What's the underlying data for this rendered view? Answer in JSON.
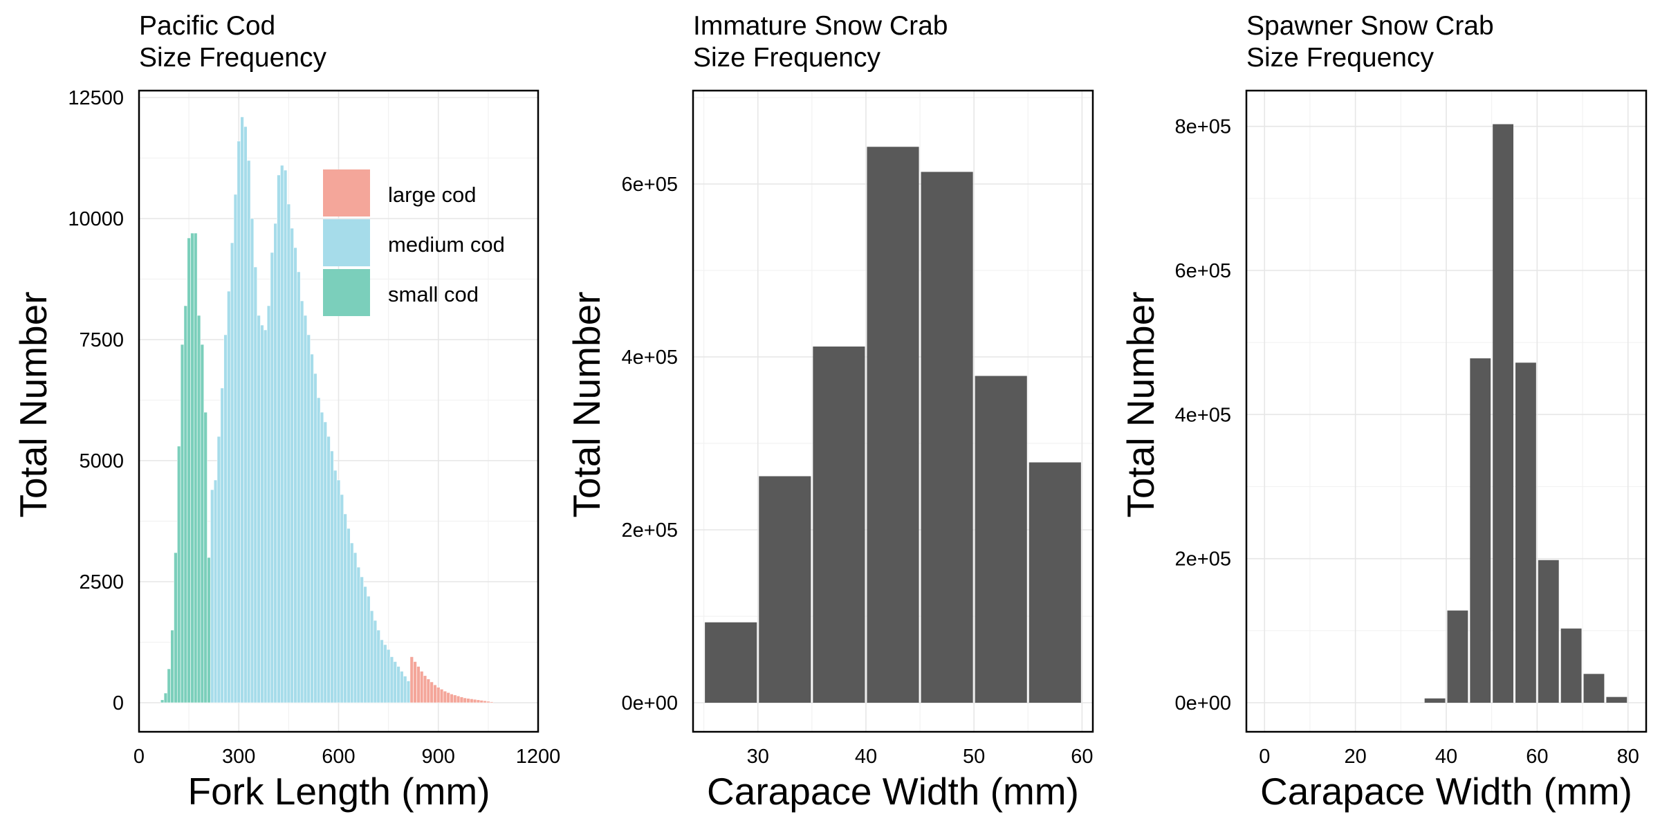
{
  "chart_data": [
    {
      "type": "bar",
      "title_line1": "Pacific Cod",
      "title_line2": "Size Frequency",
      "xlabel": "Fork Length (mm)",
      "ylabel": "Total Number",
      "xlim": [
        0,
        1200
      ],
      "ylim": [
        0,
        12500
      ],
      "xticks": [
        "0",
        "300",
        "600",
        "900",
        "1200"
      ],
      "yticks": [
        "0",
        "2500",
        "5000",
        "7500",
        "10000",
        "12500"
      ],
      "grid": true,
      "legend_position": "top-right",
      "bin_width": 10,
      "legend": [
        {
          "label": "large cod",
          "color": "#F4A69A"
        },
        {
          "label": "medium cod",
          "color": "#A6DCEA"
        },
        {
          "label": "small cod",
          "color": "#7BCFBB"
        }
      ],
      "series": [
        {
          "name": "small cod",
          "color": "#7BCFBB",
          "x": [
            70,
            80,
            90,
            100,
            110,
            120,
            130,
            140,
            150,
            160,
            170,
            180,
            190,
            200,
            210
          ],
          "values": [
            60,
            200,
            700,
            1500,
            3100,
            5300,
            7400,
            8200,
            9600,
            9700,
            9700,
            8000,
            7400,
            6000,
            3000
          ]
        },
        {
          "name": "medium cod",
          "color": "#A6DCEA",
          "x": [
            220,
            230,
            240,
            250,
            260,
            270,
            280,
            290,
            300,
            310,
            320,
            330,
            340,
            350,
            360,
            370,
            380,
            390,
            400,
            410,
            420,
            430,
            440,
            450,
            460,
            470,
            480,
            490,
            500,
            510,
            520,
            530,
            540,
            550,
            560,
            570,
            580,
            590,
            600,
            610,
            620,
            630,
            640,
            650,
            660,
            670,
            680,
            690,
            700,
            710,
            720,
            730,
            740,
            750,
            760,
            770,
            780,
            790,
            800,
            810
          ],
          "values": [
            4400,
            4600,
            5500,
            6500,
            7600,
            8500,
            9500,
            10500,
            11600,
            12100,
            11900,
            11200,
            10000,
            9000,
            8000,
            7800,
            7700,
            8200,
            9300,
            9900,
            10900,
            11100,
            11000,
            10300,
            9800,
            9400,
            8900,
            8300,
            8000,
            7600,
            7200,
            6800,
            6300,
            6000,
            5800,
            5500,
            5200,
            4800,
            4600,
            4300,
            3900,
            3600,
            3300,
            3100,
            2800,
            2600,
            2400,
            2200,
            1900,
            1700,
            1500,
            1300,
            1200,
            1100,
            950,
            850,
            750,
            650,
            550,
            450
          ]
        },
        {
          "name": "large cod",
          "color": "#F4A69A",
          "x": [
            820,
            830,
            840,
            850,
            860,
            870,
            880,
            890,
            900,
            910,
            920,
            930,
            940,
            950,
            960,
            970,
            980,
            990,
            1000,
            1010,
            1020,
            1030,
            1040,
            1050,
            1060
          ],
          "values": [
            950,
            850,
            750,
            650,
            560,
            490,
            430,
            370,
            320,
            280,
            240,
            210,
            180,
            160,
            140,
            120,
            100,
            90,
            80,
            70,
            60,
            50,
            40,
            30,
            20
          ]
        }
      ]
    },
    {
      "type": "bar",
      "title_line1": "Immature Snow Crab",
      "title_line2": "Size Frequency",
      "xlabel": "Carapace Width (mm)",
      "ylabel": "Total Number",
      "xlim": [
        24,
        61
      ],
      "ylim": [
        0,
        700000
      ],
      "xticks": [
        "30",
        "40",
        "50",
        "60"
      ],
      "yticks": [
        "0e+00",
        "2e+05",
        "4e+05",
        "6e+05"
      ],
      "grid": true,
      "color": "#595959",
      "bar_width": 5,
      "x": [
        27.5,
        32.5,
        37.5,
        42.5,
        47.5,
        52.5,
        57.5
      ],
      "values": [
        93000,
        262000,
        412000,
        643000,
        614000,
        378000,
        278000
      ]
    },
    {
      "type": "bar",
      "title_line1": "Spawner Snow Crab",
      "title_line2": "Size Frequency",
      "xlabel": "Carapace Width (mm)",
      "ylabel": "Total Number",
      "xlim": [
        -4,
        84
      ],
      "ylim": [
        0,
        840000
      ],
      "xticks": [
        "0",
        "20",
        "40",
        "60",
        "80"
      ],
      "yticks": [
        "0e+00",
        "2e+05",
        "4e+05",
        "6e+05",
        "8e+05"
      ],
      "grid": true,
      "color": "#595959",
      "bar_width": 5,
      "x": [
        37.5,
        42.5,
        47.5,
        52.5,
        57.5,
        62.5,
        67.5,
        72.5,
        77.5
      ],
      "values": [
        6000,
        128000,
        478000,
        803000,
        472000,
        198000,
        103000,
        40000,
        8000
      ]
    }
  ]
}
